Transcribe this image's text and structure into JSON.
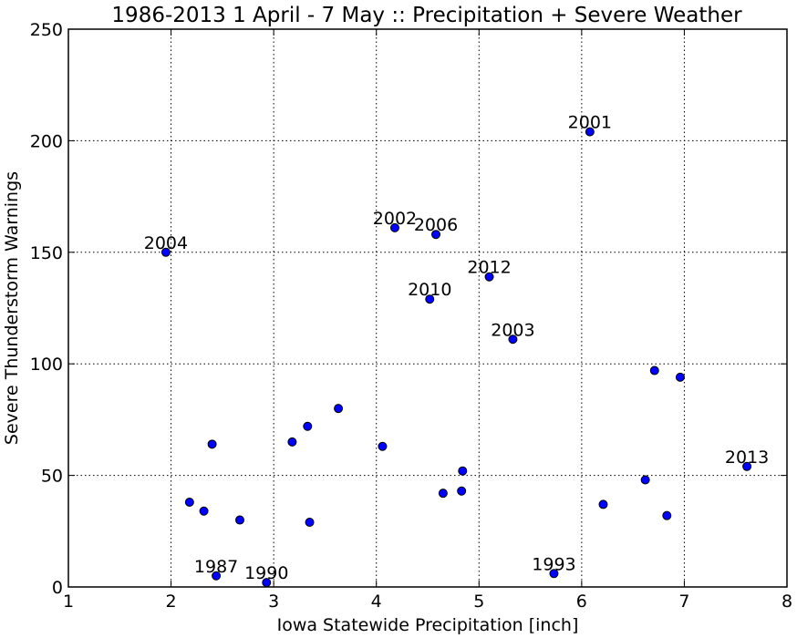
{
  "chart_data": {
    "type": "scatter",
    "title": "1986-2013 1 April - 7 May :: Precipitation + Severe Weather",
    "xlabel": "Iowa Statewide Precipitation [inch]",
    "ylabel": "Severe Thunderstorm Warnings",
    "xlim": [
      1,
      8
    ],
    "ylim": [
      0,
      250
    ],
    "xticks": [
      1,
      2,
      3,
      4,
      5,
      6,
      7,
      8
    ],
    "yticks": [
      0,
      50,
      100,
      150,
      200,
      250
    ],
    "grid": true,
    "points": [
      {
        "x": 1.95,
        "y": 150,
        "label": "2004"
      },
      {
        "x": 2.18,
        "y": 38,
        "label": ""
      },
      {
        "x": 2.32,
        "y": 34,
        "label": ""
      },
      {
        "x": 2.4,
        "y": 64,
        "label": ""
      },
      {
        "x": 2.44,
        "y": 5,
        "label": "1987"
      },
      {
        "x": 2.67,
        "y": 30,
        "label": ""
      },
      {
        "x": 2.93,
        "y": 2,
        "label": "1990"
      },
      {
        "x": 3.18,
        "y": 65,
        "label": ""
      },
      {
        "x": 3.33,
        "y": 72,
        "label": ""
      },
      {
        "x": 3.35,
        "y": 29,
        "label": ""
      },
      {
        "x": 3.63,
        "y": 80,
        "label": ""
      },
      {
        "x": 4.06,
        "y": 63,
        "label": ""
      },
      {
        "x": 4.18,
        "y": 161,
        "label": "2002"
      },
      {
        "x": 4.52,
        "y": 129,
        "label": "2010"
      },
      {
        "x": 4.58,
        "y": 158,
        "label": "2006"
      },
      {
        "x": 4.65,
        "y": 42,
        "label": ""
      },
      {
        "x": 4.83,
        "y": 43,
        "label": ""
      },
      {
        "x": 4.84,
        "y": 52,
        "label": ""
      },
      {
        "x": 5.1,
        "y": 139,
        "label": "2012"
      },
      {
        "x": 5.33,
        "y": 111,
        "label": "2003"
      },
      {
        "x": 5.73,
        "y": 6,
        "label": "1993"
      },
      {
        "x": 6.08,
        "y": 204,
        "label": "2001"
      },
      {
        "x": 6.21,
        "y": 37,
        "label": ""
      },
      {
        "x": 6.62,
        "y": 48,
        "label": ""
      },
      {
        "x": 6.71,
        "y": 97,
        "label": ""
      },
      {
        "x": 6.83,
        "y": 32,
        "label": ""
      },
      {
        "x": 6.96,
        "y": 94,
        "label": ""
      },
      {
        "x": 7.61,
        "y": 54,
        "label": "2013"
      }
    ],
    "colors": {
      "marker_fill": "#0000ff",
      "marker_edge": "#000000",
      "grid": "#000000",
      "text": "#000000"
    }
  }
}
